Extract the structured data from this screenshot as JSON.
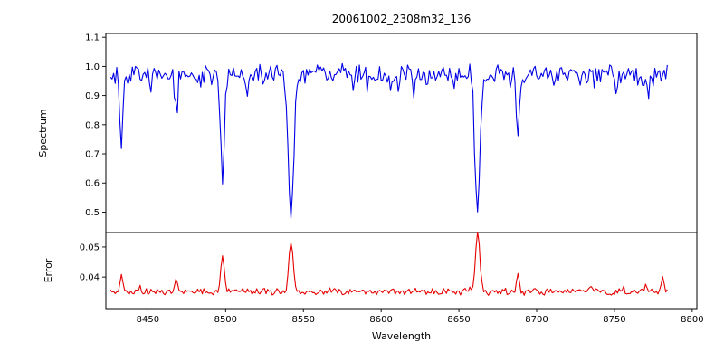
{
  "figure": {
    "background": "#ffffff",
    "frame_color": "#000000",
    "text_color": "#000000"
  },
  "chart_data": [
    {
      "type": "line",
      "panel": "spectrum",
      "title": "20061002_2308m32_136",
      "ylabel": "Spectrum",
      "color": "#0000e6",
      "xlim": [
        8423,
        8803
      ],
      "ylim": [
        0.43,
        1.113
      ],
      "yticks": [
        0.5,
        0.6,
        0.7,
        0.8,
        0.9,
        1.0,
        1.1
      ],
      "ytick_labels": [
        "0.5",
        "0.6",
        "0.7",
        "0.8",
        "0.9",
        "1.0",
        "1.1"
      ],
      "x_start": 8426,
      "x_end": 8784,
      "continuum": 0.972,
      "noise_amplitude": 0.021,
      "noise_seed": 20061002,
      "absorption_lines": [
        {
          "center": 8433,
          "depth": 0.25,
          "width": 1.3
        },
        {
          "center": 8468,
          "depth": 0.12,
          "width": 1.2
        },
        {
          "center": 8498,
          "depth": 0.35,
          "width": 1.8
        },
        {
          "center": 8514,
          "depth": 0.07,
          "width": 1.0
        },
        {
          "center": 8542,
          "depth": 0.5,
          "width": 2.4
        },
        {
          "center": 8582,
          "depth": 0.06,
          "width": 1.0
        },
        {
          "center": 8611,
          "depth": 0.05,
          "width": 1.0
        },
        {
          "center": 8662,
          "depth": 0.48,
          "width": 2.2
        },
        {
          "center": 8688,
          "depth": 0.21,
          "width": 1.4
        },
        {
          "center": 8751,
          "depth": 0.06,
          "width": 1.0
        },
        {
          "center": 8772,
          "depth": 0.1,
          "width": 1.0
        }
      ]
    },
    {
      "type": "line",
      "panel": "error",
      "ylabel": "Error",
      "xlabel": "Wavelength",
      "color": "#e60000",
      "ylim": [
        0.0295,
        0.0548
      ],
      "yticks": [
        0.04,
        0.05
      ],
      "ytick_labels": [
        "0.04",
        "0.05"
      ],
      "xticks": [
        8450,
        8500,
        8550,
        8600,
        8650,
        8700,
        8750,
        8800
      ],
      "xtick_labels": [
        "8450",
        "8500",
        "8550",
        "8600",
        "8650",
        "8700",
        "8750",
        "8800"
      ],
      "baseline": 0.0352,
      "noise_amplitude": 0.0007,
      "error_peaks": [
        {
          "center": 8433,
          "height": 0.0058,
          "width": 1.3
        },
        {
          "center": 8445,
          "height": 0.0018,
          "width": 1.0
        },
        {
          "center": 8468,
          "height": 0.005,
          "width": 1.2
        },
        {
          "center": 8498,
          "height": 0.0112,
          "width": 1.6
        },
        {
          "center": 8542,
          "height": 0.0162,
          "width": 2.0
        },
        {
          "center": 8662,
          "height": 0.0192,
          "width": 2.0
        },
        {
          "center": 8688,
          "height": 0.0047,
          "width": 1.4
        },
        {
          "center": 8735,
          "height": 0.0016,
          "width": 1.2
        },
        {
          "center": 8770,
          "height": 0.0022,
          "width": 1.2
        },
        {
          "center": 8781,
          "height": 0.0058,
          "width": 1.1
        }
      ]
    }
  ]
}
